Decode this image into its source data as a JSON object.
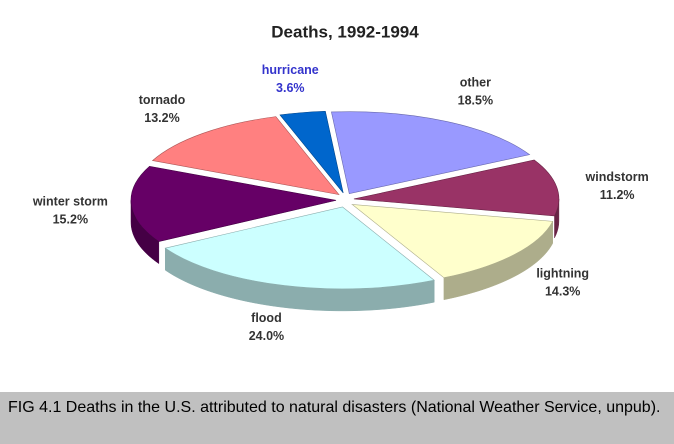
{
  "chart_data": {
    "type": "pie",
    "title": "Deaths, 1992-1994",
    "categories": [
      "other",
      "windstorm",
      "lightning",
      "flood",
      "winter storm",
      "tornado",
      "hurricane"
    ],
    "values": [
      18.5,
      11.2,
      14.3,
      24.0,
      15.2,
      13.2,
      3.6
    ],
    "value_labels": [
      "18.5%",
      "11.2%",
      "14.3%",
      "24.0%",
      "15.2%",
      "13.2%",
      "3.6%"
    ],
    "colors": [
      "#9999ff",
      "#993366",
      "#ffffcc",
      "#ccffff",
      "#660066",
      "#ff8080",
      "#0066cc"
    ],
    "label_colors": [
      "#333333",
      "#333333",
      "#333333",
      "#333333",
      "#333333",
      "#333333",
      "#3333cc"
    ],
    "caption": "FIG 4.1  Deaths in the U.S. attributed to natural disasters (National Weather Service, unpub)."
  }
}
